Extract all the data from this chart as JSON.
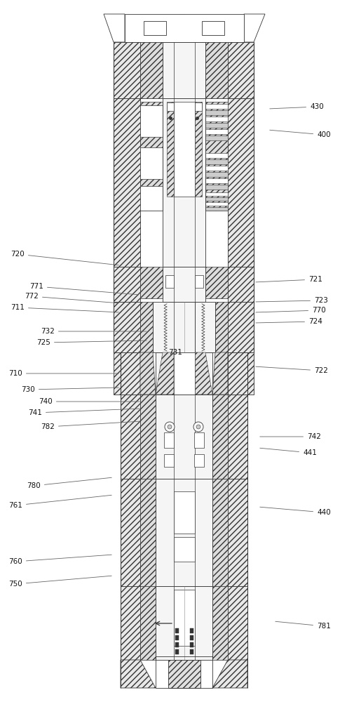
{
  "bg_color": "#ffffff",
  "line_color": "#333333",
  "figsize": [
    4.95,
    10.0
  ],
  "dpi": 100,
  "label_data": [
    [
      "781",
      462,
      108,
      390,
      115
    ],
    [
      "750",
      22,
      168,
      162,
      180
    ],
    [
      "760",
      22,
      200,
      162,
      210
    ],
    [
      "761",
      22,
      280,
      162,
      295
    ],
    [
      "780",
      48,
      308,
      162,
      320
    ],
    [
      "440",
      462,
      270,
      368,
      278
    ],
    [
      "441",
      442,
      355,
      368,
      362
    ],
    [
      "742",
      448,
      378,
      368,
      378
    ],
    [
      "782",
      68,
      392,
      202,
      400
    ],
    [
      "741",
      50,
      412,
      202,
      418
    ],
    [
      "740",
      65,
      428,
      202,
      428
    ],
    [
      "730",
      40,
      445,
      172,
      448
    ],
    [
      "710",
      22,
      468,
      172,
      468
    ],
    [
      "731",
      250,
      498,
      250,
      505
    ],
    [
      "725",
      62,
      512,
      212,
      515
    ],
    [
      "732",
      68,
      528,
      212,
      528
    ],
    [
      "722",
      458,
      472,
      362,
      478
    ],
    [
      "724",
      450,
      542,
      362,
      540
    ],
    [
      "770",
      455,
      558,
      362,
      555
    ],
    [
      "723",
      458,
      572,
      362,
      570
    ],
    [
      "711",
      25,
      562,
      172,
      555
    ],
    [
      "772",
      45,
      578,
      172,
      568
    ],
    [
      "771",
      52,
      592,
      200,
      580
    ],
    [
      "721",
      450,
      602,
      362,
      598
    ],
    [
      "720",
      25,
      638,
      172,
      622
    ],
    [
      "400",
      462,
      808,
      382,
      815
    ],
    [
      "430",
      452,
      848,
      382,
      845
    ]
  ]
}
